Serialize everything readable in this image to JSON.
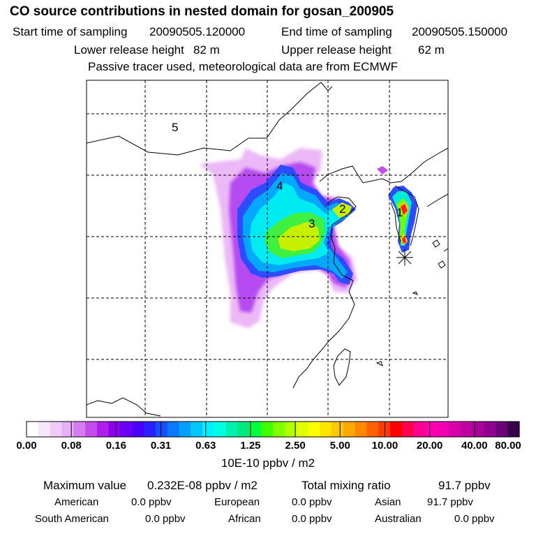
{
  "title": "CO  source contributions in nested domain for gosan_200905",
  "sampling": {
    "start_label": "Start time of sampling",
    "start_value": "20090505.120000",
    "end_label": "End time of sampling",
    "end_value": "20090505.150000"
  },
  "release": {
    "lower_label": "Lower release height",
    "lower_value": "82 m",
    "upper_label": "Upper release height",
    "upper_value": "62 m"
  },
  "note": "Passive tracer used, meteorological data are from ECMWF",
  "region_labels": [
    "1",
    "2",
    "3",
    "4",
    "5"
  ],
  "colorbar": {
    "ticks": [
      "0.00",
      "0.08",
      "0.16",
      "0.31",
      "0.63",
      "1.25",
      "2.50",
      "5.00",
      "10.00",
      "20.00",
      "40.00",
      "80.00"
    ],
    "units": "10E-10 ppbv / m2",
    "colors": [
      "#ffffff",
      "#f8e6fc",
      "#f0ccf8",
      "#e6b0f4",
      "#d57cf0",
      "#c44cec",
      "#b01eea",
      "#8c00f0",
      "#6a00f4",
      "#4a00f8",
      "#2a20ff",
      "#1450ff",
      "#0a78ff",
      "#00a0ff",
      "#00c8ff",
      "#00f0ff",
      "#00ffe0",
      "#00f0b0",
      "#00e880",
      "#00ff40",
      "#40ff00",
      "#80ff00",
      "#b0ff00",
      "#e0ff00",
      "#ffff00",
      "#ffe400",
      "#ffc800",
      "#ffa800",
      "#ff8800",
      "#ff6000",
      "#ff3a00",
      "#ff0000",
      "#ff0050",
      "#ff0090",
      "#ff00b0",
      "#f000b0",
      "#d800a8",
      "#c000a0",
      "#a80098",
      "#900090",
      "#6a007a",
      "#3a004a"
    ]
  },
  "stats": {
    "max_label": "Maximum value",
    "max_value": "0.232E-08 ppbv / m2",
    "total_label": "Total mixing ratio",
    "total_value": "91.7 ppbv"
  },
  "contributions": [
    {
      "name": "American",
      "value": "0.0 ppbv"
    },
    {
      "name": "European",
      "value": "0.0 ppbv"
    },
    {
      "name": "Asian",
      "value": "91.7 ppbv"
    },
    {
      "name": "South American",
      "value": "0.0 ppbv"
    },
    {
      "name": "African",
      "value": "0.0 ppbv"
    },
    {
      "name": "Australian",
      "value": "0.0 ppbv"
    }
  ]
}
